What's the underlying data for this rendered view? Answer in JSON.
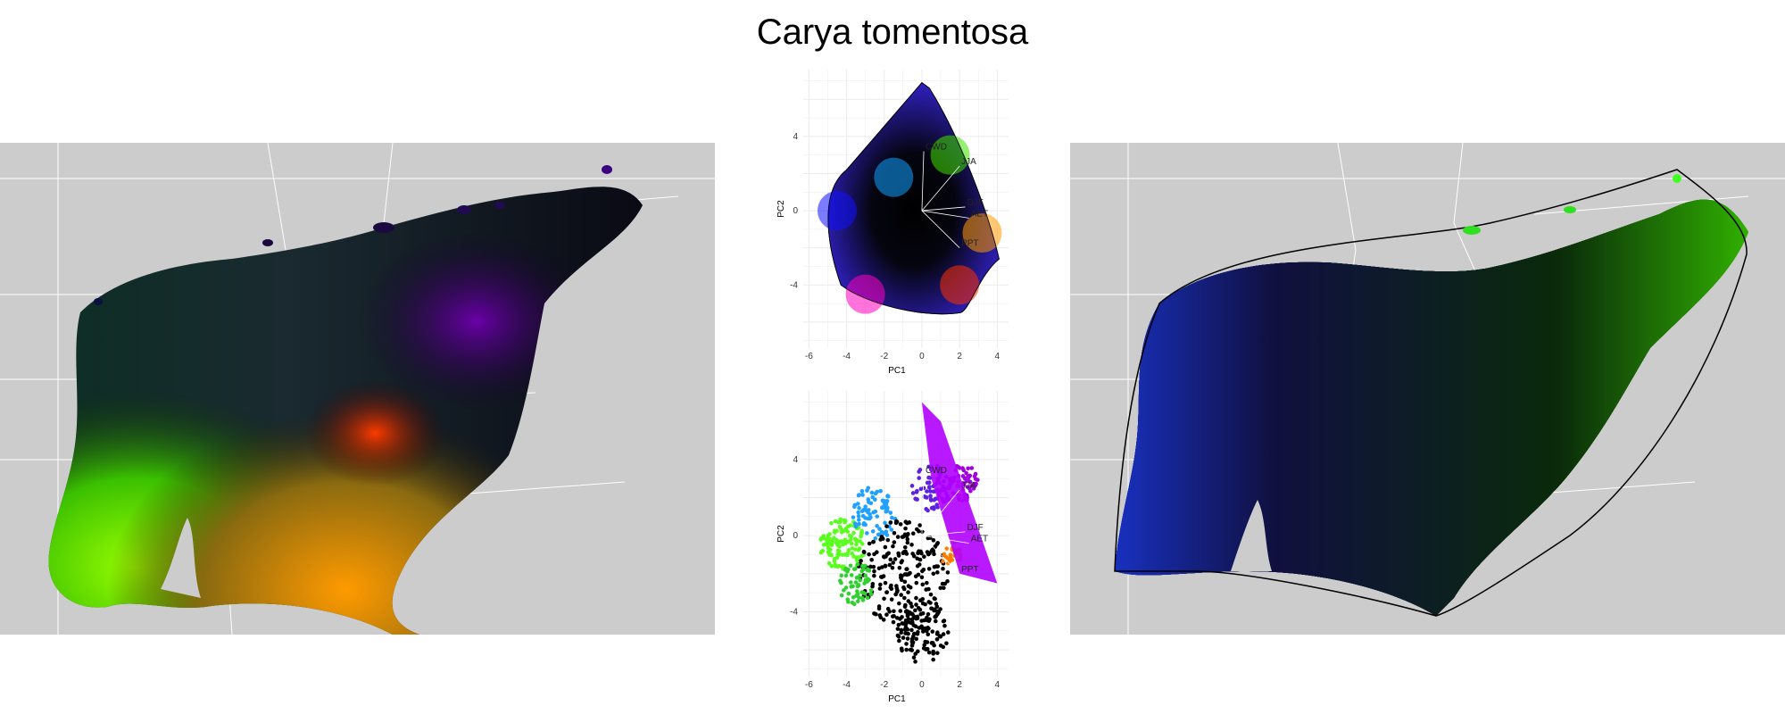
{
  "title": "Carya tomentosa",
  "maps": {
    "left": {
      "description_icon": "climate-map-icon"
    },
    "right": {
      "description_icon": "climate-map-icon"
    }
  },
  "pca_axes": {
    "xlabel": "PC1",
    "ylabel": "PC2",
    "xticks": [
      "-6",
      "-4",
      "-2",
      "0",
      "2",
      "4"
    ],
    "yticks": [
      "4",
      "0",
      "-4"
    ],
    "xtick_values": [
      -6,
      -4,
      -2,
      0,
      2,
      4
    ],
    "ytick_values": [
      4,
      0,
      -4
    ],
    "xlim": [
      -6.3,
      4.6
    ],
    "ylim": [
      -7.4,
      7.6
    ]
  },
  "vectors": [
    {
      "label": "CWD",
      "x": 0.1,
      "y": 3.2
    },
    {
      "label": "JJA",
      "x": 2.0,
      "y": 2.4
    },
    {
      "label": "DJF",
      "x": 2.3,
      "y": 0.2
    },
    {
      "label": "AET",
      "x": 2.5,
      "y": -0.4
    },
    {
      "label": "PPT",
      "x": 2.0,
      "y": -2.0
    }
  ],
  "colors": {
    "map_background": "#cccccc",
    "state_lines": "#ffffff",
    "grid": "#ebebeb"
  }
}
